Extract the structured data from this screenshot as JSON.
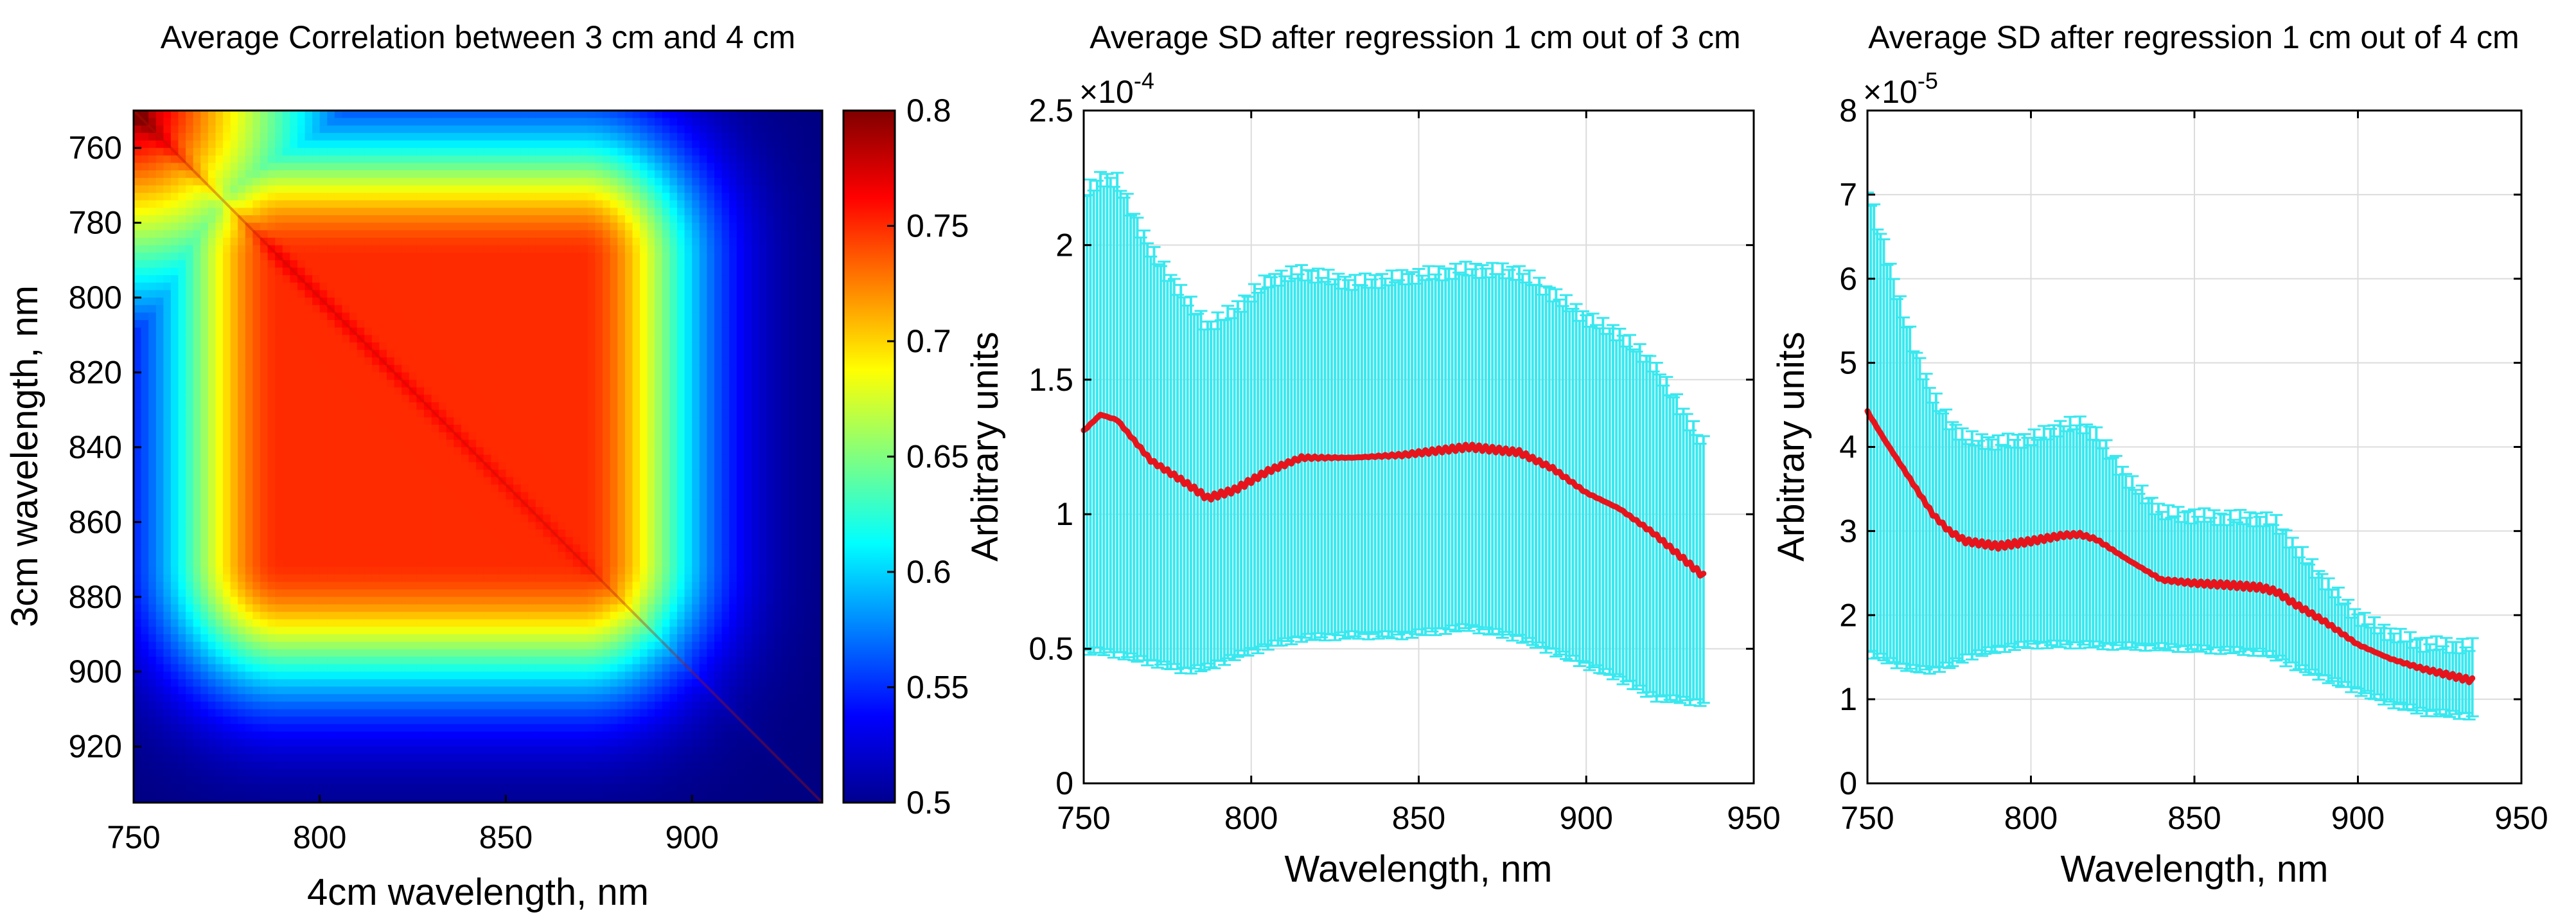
{
  "chart_data": [
    {
      "type": "heatmap",
      "title": "Average Correlation between 3 cm and  4 cm",
      "xlabel": "4cm wavelength, nm",
      "ylabel": "3cm wavelength, nm",
      "xlim": [
        750,
        935
      ],
      "ylim": [
        750,
        935
      ],
      "x_ticks": [
        750,
        800,
        850,
        900
      ],
      "y_ticks": [
        760,
        780,
        800,
        820,
        840,
        860,
        880,
        900,
        920
      ],
      "y_reversed": true,
      "colorbar": {
        "min": 0.5,
        "max": 0.8,
        "ticks": [
          0.5,
          0.55,
          0.6,
          0.65,
          0.7,
          0.75,
          0.8
        ],
        "tick_labels": [
          "0.5",
          "0.55",
          "0.6",
          "0.65",
          "0.7",
          "0.75",
          "0.8"
        ],
        "colormap": "jet"
      },
      "description_values": {
        "plateau_range_nm": [
          790,
          870
        ],
        "plateau_value": 0.75,
        "peak_corner_value": 0.8,
        "background_value": 0.5
      }
    },
    {
      "type": "line",
      "title": "Average SD after regression 1 cm out of 3 cm",
      "xlabel": "Wavelength, nm",
      "ylabel": "Arbitrary units",
      "xlim": [
        750,
        950
      ],
      "ylim": [
        0,
        2.5
      ],
      "x_ticks": [
        750,
        800,
        850,
        900,
        950
      ],
      "y_ticks": [
        0,
        0.5,
        1,
        1.5,
        2,
        2.5
      ],
      "y_tick_labels": [
        "0",
        "0.5",
        "1",
        "1.5",
        "2",
        "2.5"
      ],
      "y_multiplier_base": "10",
      "y_multiplier_exp": "-4",
      "grid": true,
      "series": [
        {
          "color": "#e8141c",
          "x": [
            750,
            755,
            760,
            770,
            780,
            787,
            795,
            805,
            815,
            830,
            845,
            865,
            880,
            890,
            900,
            910,
            920,
            935
          ],
          "mean": [
            1.31,
            1.37,
            1.35,
            1.2,
            1.12,
            1.06,
            1.09,
            1.16,
            1.21,
            1.21,
            1.22,
            1.25,
            1.23,
            1.17,
            1.08,
            1.02,
            0.93,
            0.77
          ],
          "upper": [
            2.19,
            2.25,
            2.24,
            1.98,
            1.81,
            1.7,
            1.76,
            1.87,
            1.9,
            1.86,
            1.88,
            1.91,
            1.9,
            1.82,
            1.73,
            1.67,
            1.56,
            1.26
          ],
          "lower": [
            0.49,
            0.49,
            0.48,
            0.45,
            0.42,
            0.43,
            0.47,
            0.51,
            0.54,
            0.55,
            0.55,
            0.58,
            0.54,
            0.49,
            0.44,
            0.39,
            0.32,
            0.3
          ]
        }
      ],
      "errorbar_color": "#39e8ef"
    },
    {
      "type": "line",
      "title": "Average SD after regression 1 cm out of 4 cm",
      "xlabel": "Wavelength, nm",
      "ylabel": "Arbitrary units",
      "xlim": [
        750,
        950
      ],
      "ylim": [
        0,
        8
      ],
      "x_ticks": [
        750,
        800,
        850,
        900,
        950
      ],
      "y_ticks": [
        0,
        1,
        2,
        3,
        4,
        5,
        6,
        7,
        8
      ],
      "y_tick_labels": [
        "0",
        "1",
        "2",
        "3",
        "4",
        "5",
        "6",
        "7",
        "8"
      ],
      "y_multiplier_base": "10",
      "y_multiplier_exp": "-5",
      "grid": true,
      "series": [
        {
          "color": "#e8141c",
          "x": [
            750,
            755,
            760,
            765,
            770,
            775,
            780,
            790,
            800,
            810,
            815,
            820,
            830,
            840,
            850,
            860,
            870,
            875,
            880,
            890,
            900,
            910,
            920,
            935
          ],
          "mean": [
            4.42,
            4.1,
            3.8,
            3.5,
            3.2,
            3.0,
            2.88,
            2.82,
            2.88,
            2.95,
            2.96,
            2.9,
            2.65,
            2.42,
            2.38,
            2.36,
            2.33,
            2.28,
            2.15,
            1.92,
            1.65,
            1.48,
            1.36,
            1.22
          ],
          "upper": [
            7.05,
            6.4,
            5.7,
            5.1,
            4.6,
            4.3,
            4.1,
            4.05,
            4.1,
            4.25,
            4.28,
            4.15,
            3.6,
            3.22,
            3.18,
            3.16,
            3.15,
            3.1,
            2.85,
            2.4,
            1.98,
            1.78,
            1.66,
            1.63
          ],
          "lower": [
            1.55,
            1.48,
            1.4,
            1.35,
            1.35,
            1.4,
            1.5,
            1.6,
            1.65,
            1.65,
            1.65,
            1.64,
            1.63,
            1.62,
            1.6,
            1.58,
            1.56,
            1.5,
            1.4,
            1.25,
            1.1,
            0.95,
            0.85,
            0.8
          ]
        }
      ],
      "errorbar_color": "#39e8ef"
    }
  ]
}
